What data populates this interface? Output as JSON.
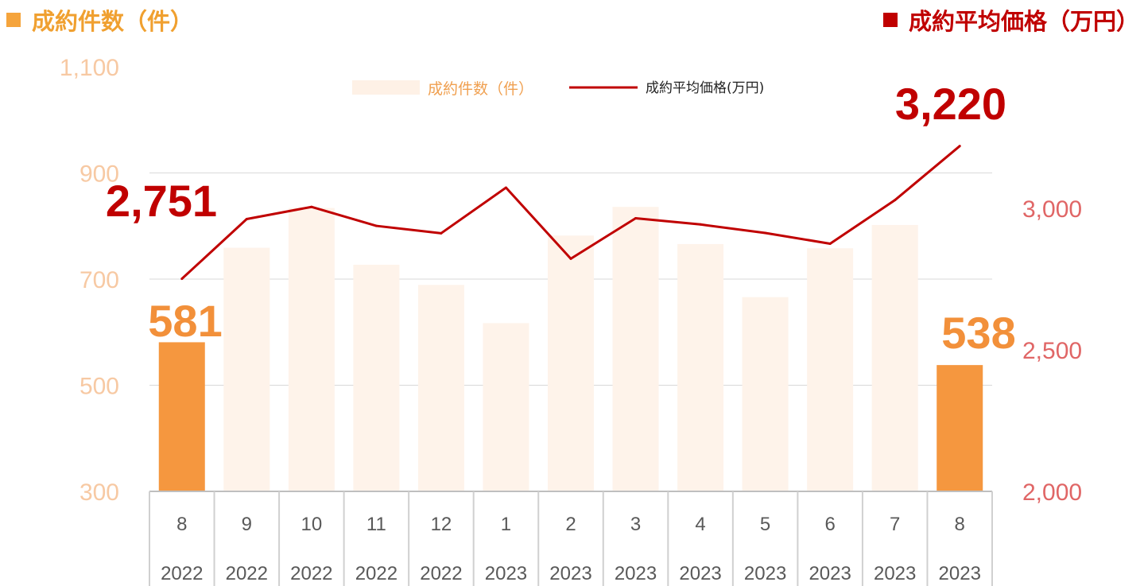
{
  "header": {
    "left_title": "成約件数（件）",
    "right_title": "成約平均価格（万円）"
  },
  "legend": {
    "bar_label": "成約件数（件）",
    "line_label": "成約平均価格(万円)"
  },
  "colors": {
    "bar_highlight": "#F5973F",
    "bar_normal": "#FEF3EA",
    "line": "#C00000"
  },
  "chart_data": {
    "type": "bar+line",
    "categories": [
      {
        "month": "8",
        "year": "2022"
      },
      {
        "month": "9",
        "year": "2022"
      },
      {
        "month": "10",
        "year": "2022"
      },
      {
        "month": "11",
        "year": "2022"
      },
      {
        "month": "12",
        "year": "2022"
      },
      {
        "month": "1",
        "year": "2023"
      },
      {
        "month": "2",
        "year": "2023"
      },
      {
        "month": "3",
        "year": "2023"
      },
      {
        "month": "4",
        "year": "2023"
      },
      {
        "month": "5",
        "year": "2023"
      },
      {
        "month": "6",
        "year": "2023"
      },
      {
        "month": "7",
        "year": "2023"
      },
      {
        "month": "8",
        "year": "2023"
      }
    ],
    "series": [
      {
        "name": "成約件数（件）",
        "type": "bar",
        "axis": "left",
        "values": [
          581,
          759,
          834,
          727,
          689,
          617,
          782,
          836,
          766,
          666,
          758,
          802,
          538
        ],
        "highlight": [
          true,
          false,
          false,
          false,
          false,
          false,
          false,
          false,
          false,
          false,
          false,
          false,
          true
        ]
      },
      {
        "name": "成約平均価格(万円)",
        "type": "line",
        "axis": "right",
        "values": [
          2751,
          2962,
          3005,
          2938,
          2912,
          3073,
          2822,
          2965,
          2943,
          2913,
          2875,
          3029,
          3220
        ]
      }
    ],
    "left_axis": {
      "min": 300,
      "max": 1100,
      "ticks": [
        "300",
        "500",
        "700",
        "900",
        "1,100"
      ]
    },
    "right_axis": {
      "min": 2000,
      "max": 3500,
      "ticks": [
        "2,000",
        "2,500",
        "3,000"
      ]
    },
    "grid": true,
    "legend_position": "top-center",
    "annotations": {
      "bar_first": "581",
      "bar_last": "538",
      "line_first": "2,751",
      "line_last": "3,220"
    }
  }
}
